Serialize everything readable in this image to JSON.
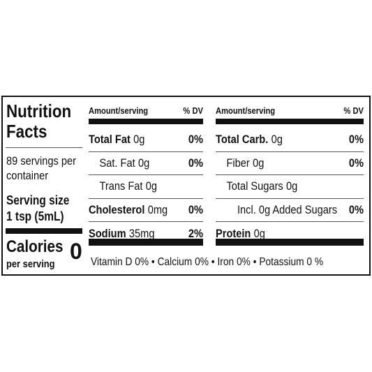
{
  "left_panel": {
    "title": "Nutrition Facts",
    "servings": "89 servings per container",
    "serving_size_label": "Serving size",
    "serving_size": "1 tsp (5mL)",
    "calories_label": "Calories",
    "calories_note": "per serving",
    "calories": 0
  },
  "columns": [
    {
      "header_amount": "Amount/serving",
      "header_dv": "% DV",
      "rows": [
        {
          "name": "Total Fat",
          "amount": "0g",
          "dv": "0%",
          "level": 0
        },
        {
          "name": "Sat. Fat",
          "amount": "0g",
          "dv": "0%",
          "level": 1
        },
        {
          "name": "Trans Fat",
          "amount": "0g",
          "level": 1
        },
        {
          "name": "Cholesterol",
          "amount": "0mg",
          "dv": "0%",
          "level": 0
        },
        {
          "name": "Sodium",
          "amount": "35mg",
          "dv": "2%",
          "level": 0
        }
      ]
    },
    {
      "header_amount": "Amount/serving",
      "header_dv": "% DV",
      "rows": [
        {
          "name": "Total Carb.",
          "amount": "0g",
          "dv": "0%",
          "level": 0
        },
        {
          "name": "Fiber",
          "amount": "0g",
          "dv": "0%",
          "level": 1
        },
        {
          "name": "Total Sugars",
          "amount": "0g",
          "level": 1
        },
        {
          "name": "Incl. 0g Added Sugars",
          "dv": "0%",
          "level": 2
        },
        {
          "name": "Protein",
          "amount": "0g",
          "level": 0
        }
      ]
    }
  ],
  "footer": "Vitamin D 0% • Calcium 0% • Iron 0% • Potassium 0 %"
}
